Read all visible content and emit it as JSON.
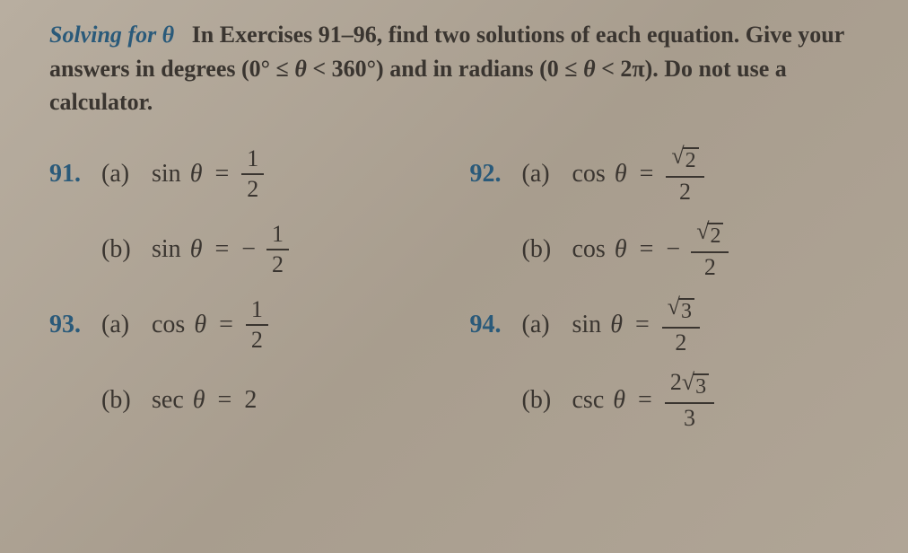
{
  "intro": {
    "heading": "Solving for θ",
    "body_1": "In Exercises 91–96, find two solutions of each equation. Give your answers in degrees (0° ≤ ",
    "theta1": "θ",
    "body_2": " < 360°) and in radians (0 ≤ ",
    "theta2": "θ",
    "body_3": " < 2π). Do not use a calculator."
  },
  "labels": {
    "a": "(a)",
    "b": "(b)"
  },
  "p91": {
    "num": "91.",
    "a_func": "sin",
    "a_var": "θ",
    "a_eq": "=",
    "a_num": "1",
    "a_den": "2",
    "b_func": "sin",
    "b_var": "θ",
    "b_eq": "=",
    "b_neg": "−",
    "b_num": "1",
    "b_den": "2"
  },
  "p92": {
    "num": "92.",
    "a_func": "cos",
    "a_var": "θ",
    "a_eq": "=",
    "a_rad": "2",
    "a_den": "2",
    "b_func": "cos",
    "b_var": "θ",
    "b_eq": "=",
    "b_neg": "−",
    "b_rad": "2",
    "b_den": "2"
  },
  "p93": {
    "num": "93.",
    "a_func": "cos",
    "a_var": "θ",
    "a_eq": "=",
    "a_num": "1",
    "a_den": "2",
    "b_func": "sec",
    "b_var": "θ",
    "b_eq": "=",
    "b_val": "2"
  },
  "p94": {
    "num": "94.",
    "a_func": "sin",
    "a_var": "θ",
    "a_eq": "=",
    "a_rad": "3",
    "a_den": "2",
    "b_func": "csc",
    "b_var": "θ",
    "b_eq": "=",
    "b_coef": "2",
    "b_rad": "3",
    "b_den": "3"
  },
  "colors": {
    "heading": "#2a5a7a",
    "text": "#3a3530",
    "background": "#b0a596"
  }
}
